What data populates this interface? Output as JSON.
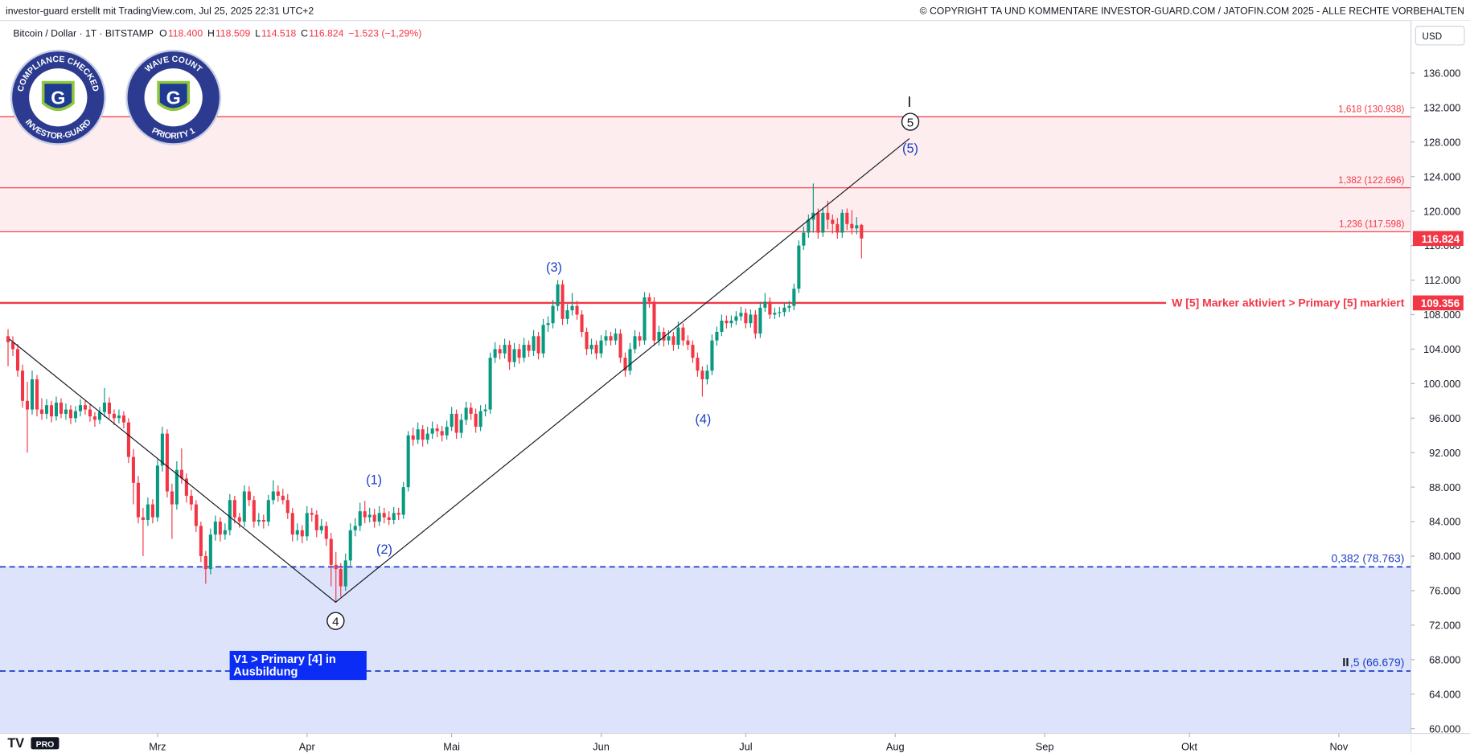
{
  "header": {
    "left": "investor-guard erstellt mit TradingView.com, Jul 25, 2025 22:31 UTC+2",
    "right": "© COPYRIGHT TA UND KOMMENTARE INVESTOR-GUARD.COM / JATOFIN.COM 2025 - ALLE RECHTE VORBEHALTEN"
  },
  "badges": [
    {
      "top": "COMPLIANCE CHECKED",
      "bottom": "INVESTOR-GUARD",
      "mark": "G"
    },
    {
      "top": "WAVE COUNT",
      "bottom": "PRIORITY 1",
      "mark": "G"
    }
  ],
  "logo": "PRO",
  "annotations": {
    "waves": [
      "(1)",
      "(2)",
      "(3)",
      "(4)",
      "(5)"
    ],
    "circled": [
      "4",
      "5"
    ],
    "degree": "I",
    "box": [
      "V1 > Primary [4] in",
      "Ausbildung"
    ]
  },
  "chart_data": {
    "type": "candlestick",
    "symbol": "Bitcoin / Dollar · 1T · BITSTAMP",
    "legend": [
      {
        "key": "O",
        "value": "118.400"
      },
      {
        "key": "H",
        "value": "118.509"
      },
      {
        "key": "L",
        "value": "114.518"
      },
      {
        "key": "C",
        "value": "116.824"
      },
      {
        "key": "",
        "value": "−1.523 (−1,29%)"
      }
    ],
    "currency": "USD",
    "up_color": "#089981",
    "down_color": "#f23645",
    "grid": false,
    "ylim": [
      59460,
      142080
    ],
    "yticks": [
      {
        "value": 60000,
        "label": "60.000"
      },
      {
        "value": 64000,
        "label": "64.000"
      },
      {
        "value": 68000,
        "label": "68.000"
      },
      {
        "value": 72000,
        "label": "72.000"
      },
      {
        "value": 76000,
        "label": "76.000"
      },
      {
        "value": 80000,
        "label": "80.000"
      },
      {
        "value": 84000,
        "label": "84.000"
      },
      {
        "value": 88000,
        "label": "88.000"
      },
      {
        "value": 92000,
        "label": "92.000"
      },
      {
        "value": 96000,
        "label": "96.000"
      },
      {
        "value": 100000,
        "label": "100.000"
      },
      {
        "value": 104000,
        "label": "104.000"
      },
      {
        "value": 108000,
        "label": "108.000"
      },
      {
        "value": 112000,
        "label": "112.000"
      },
      {
        "value": 116000,
        "label": "116.000"
      },
      {
        "value": 120000,
        "label": "120.000"
      },
      {
        "value": 124000,
        "label": "124.000"
      },
      {
        "value": 128000,
        "label": "128.000"
      },
      {
        "value": 132000,
        "label": "132.000"
      },
      {
        "value": 136000,
        "label": "136.000"
      }
    ],
    "xlim": [
      -1.67,
      290.95
    ],
    "xticks": [
      {
        "value": 31,
        "label": "Mrz"
      },
      {
        "value": 62,
        "label": "Apr"
      },
      {
        "value": 92,
        "label": "Mai"
      },
      {
        "value": 123,
        "label": "Jun"
      },
      {
        "value": 153,
        "label": "Jul"
      },
      {
        "value": 184,
        "label": "Aug"
      },
      {
        "value": 215,
        "label": "Sep"
      },
      {
        "value": 245,
        "label": "Okt"
      },
      {
        "value": 276,
        "label": "Nov"
      }
    ],
    "last_price": {
      "value": 116824,
      "label": "116.824"
    },
    "zones": [
      {
        "from": 117598,
        "to": 130938,
        "color": "#fdedef"
      },
      {
        "from": 78763,
        "color": "#dde3fb"
      }
    ],
    "levels": [
      {
        "value": 130938,
        "label": "1,618 (130.938)",
        "color": "#f23645",
        "width": 1,
        "dashed": false
      },
      {
        "value": 122696,
        "label": "1,382 (122.696)",
        "color": "#f23645",
        "width": 1,
        "dashed": false
      },
      {
        "value": 117598,
        "label": "1,236 (117.598)",
        "color": "#f23645",
        "width": 1,
        "dashed": false
      },
      {
        "value": 109356,
        "label": "W [5] Marker aktiviert > Primary [5] markiert",
        "badge": "109.356",
        "color": "#f23645",
        "width": 2,
        "dashed": false
      },
      {
        "value": 78763,
        "label": "0,382 (78.763)",
        "color": "#1a3ec9",
        "width": 1.5,
        "dashed": true
      },
      {
        "value": 66679,
        "label": ",5 (66.679)",
        "prefix": "II",
        "color": "#1a3ec9",
        "width": 1.5,
        "dashed": true
      }
    ],
    "candles": [
      [
        105500,
        106300,
        102000,
        104800
      ],
      [
        104800,
        105500,
        103200,
        104000
      ],
      [
        104000,
        104600,
        100800,
        101500
      ],
      [
        101500,
        102200,
        97200,
        98000
      ],
      [
        98000,
        100200,
        92000,
        97000
      ],
      [
        97000,
        101500,
        96400,
        100500
      ],
      [
        100500,
        101000,
        96200,
        97000
      ],
      [
        97000,
        98300,
        95800,
        96500
      ],
      [
        96500,
        98200,
        95900,
        97500
      ],
      [
        97500,
        98000,
        95500,
        96200
      ],
      [
        96200,
        98500,
        95700,
        97800
      ],
      [
        97800,
        98300,
        96000,
        96500
      ],
      [
        96500,
        97700,
        95800,
        97000
      ],
      [
        97000,
        97500,
        95300,
        96000
      ],
      [
        96000,
        97400,
        95500,
        96800
      ],
      [
        96800,
        98200,
        96200,
        97500
      ],
      [
        97500,
        98000,
        96400,
        97000
      ],
      [
        97000,
        97600,
        95600,
        96200
      ],
      [
        96200,
        96700,
        95000,
        95800
      ],
      [
        95800,
        97300,
        95300,
        96700
      ],
      [
        96700,
        99500,
        96100,
        97800
      ],
      [
        97800,
        98400,
        95900,
        96500
      ],
      [
        96500,
        97000,
        95200,
        96000
      ],
      [
        96000,
        97000,
        95400,
        96300
      ],
      [
        96300,
        96800,
        94800,
        95500
      ],
      [
        95500,
        96000,
        90800,
        91500
      ],
      [
        91500,
        92400,
        86000,
        88500
      ],
      [
        88500,
        89300,
        83800,
        84500
      ],
      [
        84500,
        85600,
        80000,
        84200
      ],
      [
        84200,
        86800,
        83500,
        86000
      ],
      [
        86000,
        86600,
        83800,
        84500
      ],
      [
        84500,
        91200,
        84000,
        90500
      ],
      [
        90500,
        95000,
        89800,
        94200
      ],
      [
        94200,
        94700,
        86800,
        87500
      ],
      [
        87500,
        88400,
        82000,
        86000
      ],
      [
        86000,
        91000,
        85400,
        90000
      ],
      [
        90000,
        92500,
        88400,
        89000
      ],
      [
        89000,
        89600,
        86200,
        87000
      ],
      [
        87000,
        87700,
        85300,
        86000
      ],
      [
        86000,
        86500,
        82800,
        83500
      ],
      [
        83500,
        84000,
        79300,
        80000
      ],
      [
        80000,
        80600,
        76800,
        78500
      ],
      [
        78500,
        83200,
        77900,
        82500
      ],
      [
        82500,
        84700,
        81800,
        84000
      ],
      [
        84000,
        84500,
        81700,
        82500
      ],
      [
        82500,
        83800,
        81900,
        83000
      ],
      [
        83000,
        87200,
        82400,
        86500
      ],
      [
        86500,
        87000,
        83800,
        84500
      ],
      [
        84500,
        85000,
        83300,
        84000
      ],
      [
        84000,
        88200,
        83400,
        87500
      ],
      [
        87500,
        88100,
        85800,
        86500
      ],
      [
        86500,
        87000,
        83300,
        84000
      ],
      [
        84000,
        85000,
        83500,
        84200
      ],
      [
        84200,
        84800,
        83200,
        84000
      ],
      [
        84000,
        87100,
        83500,
        86500
      ],
      [
        86500,
        88800,
        86000,
        87500
      ],
      [
        87500,
        88200,
        86300,
        87000
      ],
      [
        87000,
        87800,
        86000,
        86500
      ],
      [
        86500,
        87200,
        84300,
        85000
      ],
      [
        85000,
        85600,
        81700,
        82500
      ],
      [
        82500,
        83800,
        81800,
        83000
      ],
      [
        83000,
        83600,
        81500,
        82300
      ],
      [
        82300,
        85800,
        81800,
        85000
      ],
      [
        85000,
        85600,
        84000,
        84800
      ],
      [
        84800,
        85300,
        82200,
        83000
      ],
      [
        83000,
        84300,
        82600,
        83500
      ],
      [
        83500,
        84000,
        81200,
        82000
      ],
      [
        82000,
        82700,
        76500,
        79000
      ],
      [
        79000,
        80500,
        74600,
        78500
      ],
      [
        78500,
        79200,
        75300,
        76500
      ],
      [
        76500,
        80300,
        76000,
        79500
      ],
      [
        79500,
        83800,
        78900,
        83000
      ],
      [
        83000,
        84400,
        82300,
        83500
      ],
      [
        83500,
        86200,
        82900,
        85200
      ],
      [
        85200,
        86400,
        83800,
        84500
      ],
      [
        84500,
        85600,
        83900,
        84800
      ],
      [
        84800,
        85500,
        83300,
        84000
      ],
      [
        84000,
        85800,
        83500,
        85000
      ],
      [
        85000,
        85600,
        83800,
        84500
      ],
      [
        84500,
        85200,
        83600,
        84200
      ],
      [
        84200,
        85700,
        83700,
        85000
      ],
      [
        85000,
        85600,
        84200,
        84800
      ],
      [
        84800,
        88600,
        84300,
        88000
      ],
      [
        88000,
        94500,
        87500,
        94000
      ],
      [
        94000,
        94900,
        92800,
        93500
      ],
      [
        93500,
        95500,
        93000,
        94700
      ],
      [
        94700,
        95200,
        92700,
        93500
      ],
      [
        93500,
        95000,
        93000,
        94200
      ],
      [
        94200,
        95600,
        93600,
        94800
      ],
      [
        94800,
        95300,
        93800,
        94500
      ],
      [
        94500,
        95100,
        93300,
        94000
      ],
      [
        94000,
        95700,
        93500,
        95000
      ],
      [
        95000,
        97300,
        94500,
        96500
      ],
      [
        96500,
        97000,
        93600,
        94300
      ],
      [
        94300,
        96500,
        93700,
        95800
      ],
      [
        95800,
        97900,
        95200,
        97200
      ],
      [
        97200,
        97800,
        95800,
        96500
      ],
      [
        96500,
        97100,
        94300,
        95000
      ],
      [
        95000,
        97500,
        94500,
        96800
      ],
      [
        96800,
        97600,
        96200,
        97000
      ],
      [
        97000,
        103600,
        96500,
        103000
      ],
      [
        103000,
        104800,
        102400,
        104000
      ],
      [
        104000,
        104500,
        102800,
        103500
      ],
      [
        103500,
        105200,
        102900,
        104500
      ],
      [
        104500,
        105000,
        101600,
        102500
      ],
      [
        102500,
        104700,
        101900,
        104000
      ],
      [
        104000,
        104600,
        102300,
        103000
      ],
      [
        103000,
        105300,
        102500,
        104500
      ],
      [
        104500,
        105000,
        103100,
        103800
      ],
      [
        103800,
        106200,
        103200,
        105500
      ],
      [
        105500,
        106000,
        102800,
        103500
      ],
      [
        103500,
        107500,
        103000,
        106800
      ],
      [
        106800,
        107800,
        106000,
        107000
      ],
      [
        107000,
        109700,
        106400,
        109000
      ],
      [
        109000,
        112000,
        108400,
        111500
      ],
      [
        111500,
        112000,
        106800,
        107500
      ],
      [
        107500,
        109200,
        106900,
        108500
      ],
      [
        108500,
        110500,
        107900,
        109000
      ],
      [
        109000,
        109600,
        107400,
        108000
      ],
      [
        108000,
        108500,
        105400,
        106000
      ],
      [
        106000,
        106500,
        103300,
        104000
      ],
      [
        104000,
        105200,
        103400,
        104500
      ],
      [
        104500,
        105000,
        102800,
        103500
      ],
      [
        103500,
        105600,
        103000,
        105000
      ],
      [
        105000,
        106200,
        104400,
        105500
      ],
      [
        105500,
        106000,
        104400,
        105000
      ],
      [
        105000,
        106400,
        104500,
        105800
      ],
      [
        105800,
        106300,
        102400,
        103000
      ],
      [
        103000,
        103600,
        100800,
        101500
      ],
      [
        101500,
        104700,
        101000,
        104000
      ],
      [
        104000,
        106200,
        103500,
        105500
      ],
      [
        105500,
        106000,
        104300,
        105000
      ],
      [
        105000,
        110600,
        104500,
        110000
      ],
      [
        110000,
        110500,
        108800,
        109500
      ],
      [
        109500,
        110000,
        104400,
        105000
      ],
      [
        105000,
        106700,
        104400,
        106000
      ],
      [
        106000,
        106500,
        104300,
        105000
      ],
      [
        105000,
        106200,
        104500,
        105500
      ],
      [
        105500,
        106000,
        103800,
        104500
      ],
      [
        104500,
        107200,
        104000,
        106500
      ],
      [
        106500,
        107000,
        104400,
        105000
      ],
      [
        105000,
        105600,
        103900,
        104500
      ],
      [
        104500,
        105000,
        102400,
        103000
      ],
      [
        103000,
        103600,
        100800,
        101500
      ],
      [
        101500,
        102000,
        98500,
        100500
      ],
      [
        100500,
        102200,
        99900,
        101500
      ],
      [
        101500,
        105700,
        101000,
        105000
      ],
      [
        105000,
        106600,
        104400,
        106000
      ],
      [
        106000,
        108000,
        105500,
        107300
      ],
      [
        107300,
        107900,
        106400,
        107000
      ],
      [
        107000,
        107900,
        106500,
        107300
      ],
      [
        107300,
        108400,
        106800,
        107800
      ],
      [
        107800,
        108900,
        107300,
        108200
      ],
      [
        108200,
        108700,
        106400,
        107000
      ],
      [
        107000,
        108600,
        106500,
        108000
      ],
      [
        108000,
        108500,
        105200,
        105800
      ],
      [
        105800,
        109500,
        105300,
        108800
      ],
      [
        108800,
        110500,
        108300,
        109500
      ],
      [
        109500,
        110000,
        107500,
        108000
      ],
      [
        108000,
        108800,
        107500,
        108200
      ],
      [
        108200,
        108900,
        107700,
        108300
      ],
      [
        108300,
        109400,
        107800,
        108800
      ],
      [
        108800,
        109600,
        108300,
        109000
      ],
      [
        109000,
        111600,
        108500,
        111000
      ],
      [
        111000,
        116600,
        110500,
        116000
      ],
      [
        116000,
        118200,
        115500,
        117500
      ],
      [
        117500,
        119600,
        116900,
        119000
      ],
      [
        119000,
        123200,
        117500,
        119800
      ],
      [
        119800,
        120300,
        116800,
        117500
      ],
      [
        117500,
        120400,
        117000,
        119800
      ],
      [
        119800,
        121200,
        117900,
        119000
      ],
      [
        119000,
        119600,
        117400,
        118500
      ],
      [
        118500,
        119200,
        116800,
        117500
      ],
      [
        117500,
        120200,
        116900,
        119800
      ],
      [
        119800,
        120300,
        117800,
        118500
      ],
      [
        118500,
        120100,
        117300,
        118000
      ],
      [
        118000,
        119300,
        117300,
        118347
      ],
      [
        118400,
        118509,
        114518,
        116824
      ]
    ]
  }
}
